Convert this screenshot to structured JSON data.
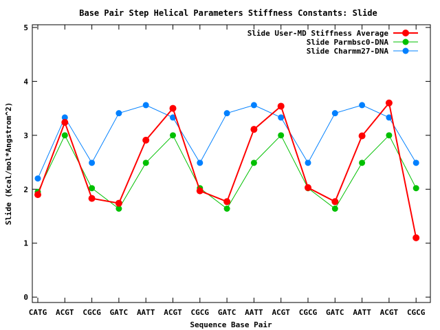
{
  "chart_data": {
    "type": "line",
    "title": "Base Pair Step Helical Parameters Stiffness Constants: Slide",
    "xlabel": "Sequence Base Pair",
    "ylabel": "Slide (Kcal/mol*Angstrom^2)",
    "ylim": [
      -0.1,
      5.05
    ],
    "yticks": [
      0,
      1,
      2,
      3,
      4,
      5
    ],
    "grid": false,
    "legend_position": "top-right",
    "categories": [
      "CATG",
      "ACGT",
      "CGCG",
      "GATC",
      "AATT",
      "ACGT",
      "CGCG",
      "GATC",
      "AATT",
      "ACGT",
      "CGCG",
      "GATC",
      "AATT",
      "ACGT",
      "CGCG"
    ],
    "series": [
      {
        "name": "Slide User-MD Stiffness Average",
        "color": "#ff0000",
        "values": [
          1.9,
          3.24,
          1.83,
          1.74,
          2.91,
          3.5,
          1.97,
          1.77,
          3.11,
          3.54,
          2.03,
          1.77,
          2.99,
          3.6,
          1.1
        ]
      },
      {
        "name": "Slide Parmbsc0-DNA",
        "color": "#00c000",
        "values": [
          1.95,
          3.0,
          2.02,
          1.64,
          2.49,
          3.0,
          2.02,
          1.64,
          2.49,
          3.0,
          2.02,
          1.64,
          2.49,
          3.0,
          2.02
        ]
      },
      {
        "name": "Slide Charmm27-DNA",
        "color": "#0080ff",
        "values": [
          2.2,
          3.33,
          2.49,
          3.41,
          3.56,
          3.33,
          2.49,
          3.41,
          3.56,
          3.33,
          2.49,
          3.41,
          3.56,
          3.33,
          2.49
        ]
      }
    ]
  }
}
